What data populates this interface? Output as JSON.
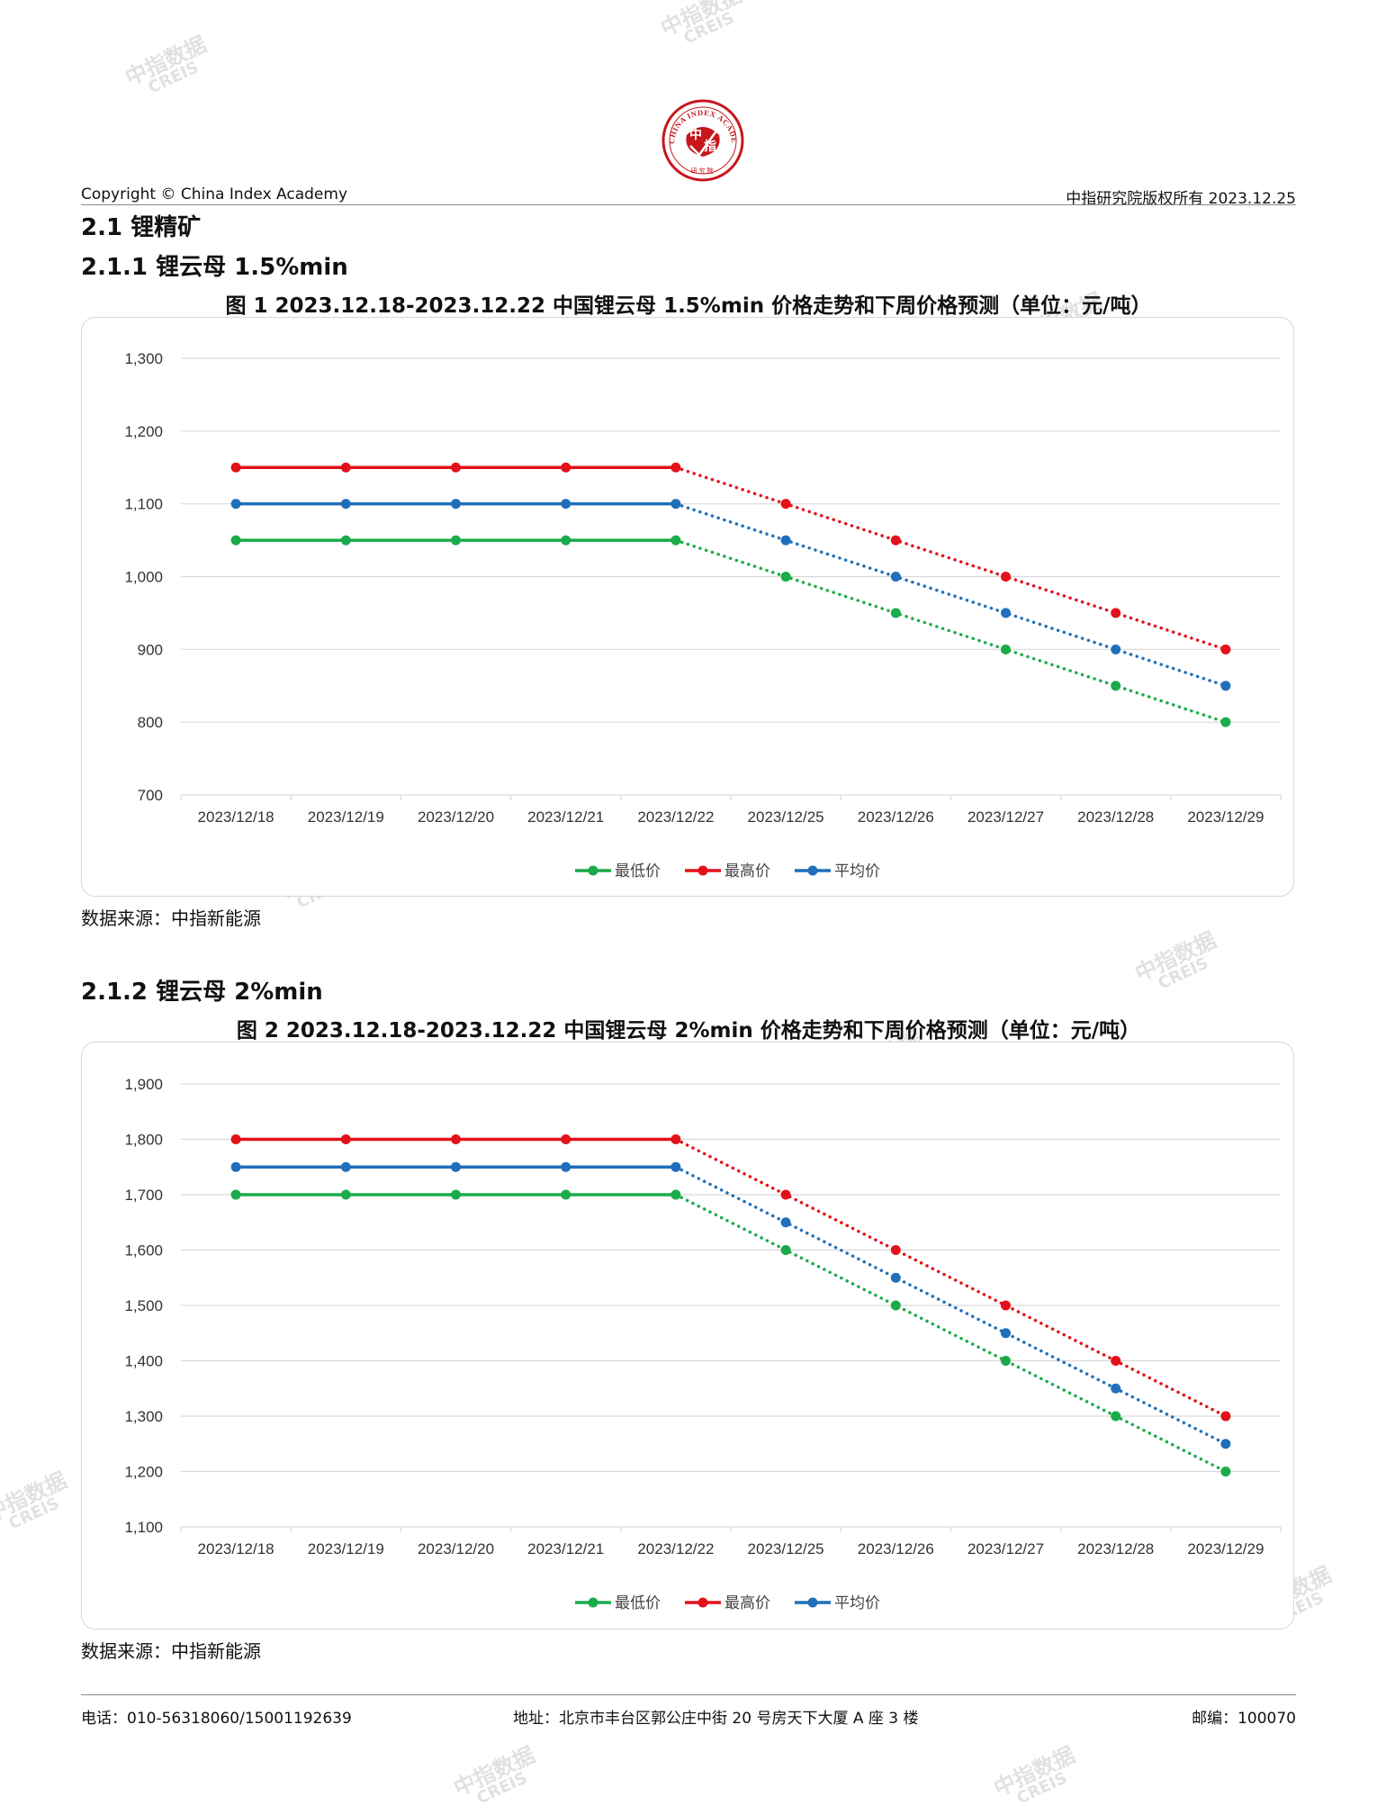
{
  "header": {
    "copyright": "Copyright © China Index Academy",
    "right_text": "中指研究院版权所有 2023.12.25"
  },
  "logo": {
    "center_char_top": "中",
    "center_char_bottom": "指",
    "ring_text": "CHINA INDEX ACADEMY",
    "bottom_text": "研究院"
  },
  "watermark": {
    "cn": "中指数据",
    "en": "CREIS"
  },
  "section": {
    "h2": "2.1 锂精矿",
    "h3_1": "2.1.1 锂云母 1.5%min",
    "h3_2": "2.1.2 锂云母 2%min"
  },
  "charts": [
    {
      "title": "图 1 2023.12.18-2023.12.22 中国锂云母 1.5%min 价格走势和下周价格预测（单位：元/吨）",
      "source": "数据来源：中指新能源"
    },
    {
      "title": "图 2 2023.12.18-2023.12.22 中国锂云母 2%min 价格走势和下周价格预测（单位：元/吨）",
      "source": "数据来源：中指新能源"
    }
  ],
  "chart_data": [
    {
      "type": "line",
      "title": "",
      "categories": [
        "2023/12/18",
        "2023/12/19",
        "2023/12/20",
        "2023/12/21",
        "2023/12/22",
        "2023/12/25",
        "2023/12/26",
        "2023/12/27",
        "2023/12/28",
        "2023/12/29"
      ],
      "ylim": [
        700,
        1300
      ],
      "yticks": [
        700,
        800,
        900,
        1000,
        1100,
        1200,
        1300
      ],
      "ytick_labels": [
        "700",
        "800",
        "900",
        "1,000",
        "1,100",
        "1,200",
        "1,300"
      ],
      "grid": true,
      "legend_position": "bottom",
      "solid_points": 5,
      "series": [
        {
          "name": "最低价",
          "color": "#1aab4a",
          "values": [
            1050,
            1050,
            1050,
            1050,
            1050,
            1000,
            950,
            900,
            850,
            800
          ]
        },
        {
          "name": "最高价",
          "color": "#e3111b",
          "values": [
            1150,
            1150,
            1150,
            1150,
            1150,
            1100,
            1050,
            1000,
            950,
            900
          ]
        },
        {
          "name": "平均价",
          "color": "#1f6fba",
          "values": [
            1100,
            1100,
            1100,
            1100,
            1100,
            1050,
            1000,
            950,
            900,
            850
          ]
        }
      ]
    },
    {
      "type": "line",
      "title": "",
      "categories": [
        "2023/12/18",
        "2023/12/19",
        "2023/12/20",
        "2023/12/21",
        "2023/12/22",
        "2023/12/25",
        "2023/12/26",
        "2023/12/27",
        "2023/12/28",
        "2023/12/29"
      ],
      "ylim": [
        1100,
        1900
      ],
      "yticks": [
        1100,
        1200,
        1300,
        1400,
        1500,
        1600,
        1700,
        1800,
        1900
      ],
      "ytick_labels": [
        "1,100",
        "1,200",
        "1,300",
        "1,400",
        "1,500",
        "1,600",
        "1,700",
        "1,800",
        "1,900"
      ],
      "grid": true,
      "legend_position": "bottom",
      "solid_points": 5,
      "series": [
        {
          "name": "最低价",
          "color": "#1aab4a",
          "values": [
            1700,
            1700,
            1700,
            1700,
            1700,
            1600,
            1500,
            1400,
            1300,
            1200
          ]
        },
        {
          "name": "最高价",
          "color": "#e3111b",
          "values": [
            1800,
            1800,
            1800,
            1800,
            1800,
            1700,
            1600,
            1500,
            1400,
            1300
          ]
        },
        {
          "name": "平均价",
          "color": "#1f6fba",
          "values": [
            1750,
            1750,
            1750,
            1750,
            1750,
            1650,
            1550,
            1450,
            1350,
            1250
          ]
        }
      ]
    }
  ],
  "footer": {
    "phone": "电话：010-56318060/15001192639",
    "address": "地址：北京市丰台区郭公庄中街 20 号房天下大厦 A 座 3 楼",
    "postcode": "邮编：100070"
  }
}
